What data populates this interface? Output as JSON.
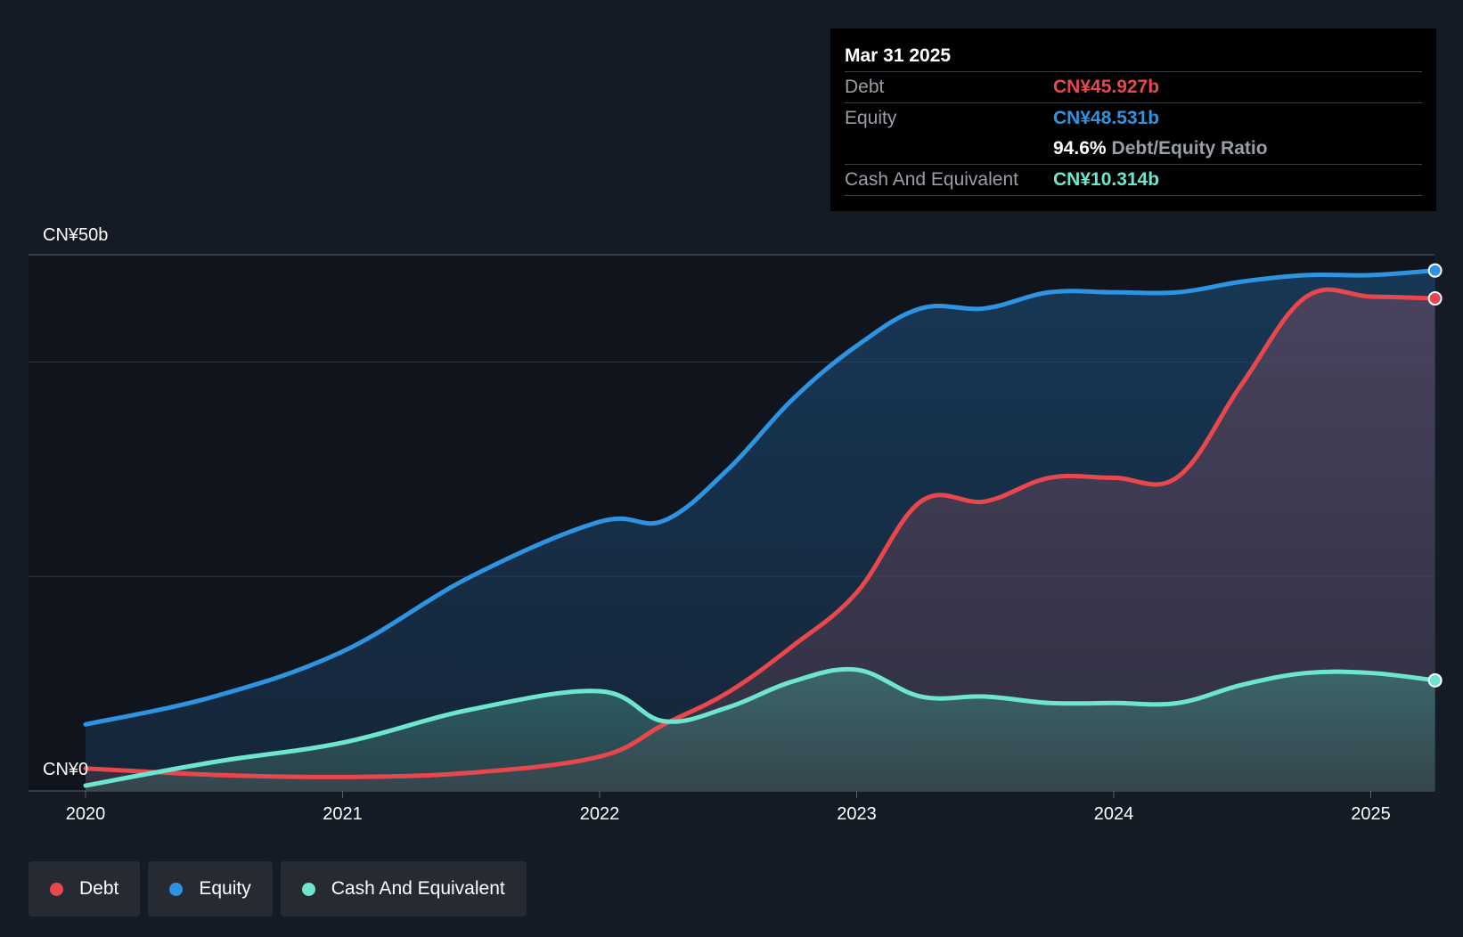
{
  "chart_data": {
    "type": "area",
    "title": "",
    "y_axis": {
      "top_label": "CN¥50b",
      "bottom_label": "CN¥0",
      "ylim": [
        0,
        50
      ]
    },
    "x_axis": {
      "ticks": [
        "2020",
        "2021",
        "2022",
        "2023",
        "2024",
        "2025"
      ],
      "xlim": [
        2020.0,
        2025.25
      ]
    },
    "series": [
      {
        "name": "Debt",
        "color": "#e8474d",
        "points": [
          [
            2020.0,
            2.1
          ],
          [
            2020.5,
            1.5
          ],
          [
            2021.0,
            1.3
          ],
          [
            2021.5,
            1.7
          ],
          [
            2022.0,
            3.2
          ],
          [
            2022.25,
            6.2
          ],
          [
            2022.5,
            9.2
          ],
          [
            2022.75,
            13.5
          ],
          [
            2023.0,
            18.5
          ],
          [
            2023.25,
            27.0
          ],
          [
            2023.5,
            27.0
          ],
          [
            2023.75,
            29.2
          ],
          [
            2024.0,
            29.2
          ],
          [
            2024.25,
            29.3
          ],
          [
            2024.5,
            38.0
          ],
          [
            2024.75,
            46.1
          ],
          [
            2025.0,
            46.1
          ],
          [
            2025.25,
            45.927
          ]
        ]
      },
      {
        "name": "Equity",
        "color": "#2e93e0",
        "points": [
          [
            2020.0,
            6.2
          ],
          [
            2020.5,
            8.8
          ],
          [
            2021.0,
            13.0
          ],
          [
            2021.5,
            20.0
          ],
          [
            2022.0,
            25.1
          ],
          [
            2022.25,
            25.2
          ],
          [
            2022.5,
            30.0
          ],
          [
            2022.75,
            36.5
          ],
          [
            2023.0,
            41.5
          ],
          [
            2023.25,
            45.0
          ],
          [
            2023.5,
            45.0
          ],
          [
            2023.75,
            46.5
          ],
          [
            2024.0,
            46.5
          ],
          [
            2024.25,
            46.5
          ],
          [
            2024.5,
            47.5
          ],
          [
            2024.75,
            48.1
          ],
          [
            2025.0,
            48.1
          ],
          [
            2025.25,
            48.531
          ]
        ]
      },
      {
        "name": "Cash And Equivalent",
        "color": "#6ee6cf",
        "points": [
          [
            2020.0,
            0.5
          ],
          [
            2020.5,
            2.7
          ],
          [
            2021.0,
            4.5
          ],
          [
            2021.5,
            7.6
          ],
          [
            2022.0,
            9.3
          ],
          [
            2022.25,
            6.5
          ],
          [
            2022.5,
            7.8
          ],
          [
            2022.75,
            10.2
          ],
          [
            2023.0,
            11.3
          ],
          [
            2023.25,
            8.8
          ],
          [
            2023.5,
            8.8
          ],
          [
            2023.75,
            8.2
          ],
          [
            2024.0,
            8.2
          ],
          [
            2024.25,
            8.2
          ],
          [
            2024.5,
            9.9
          ],
          [
            2024.75,
            11.0
          ],
          [
            2025.0,
            11.0
          ],
          [
            2025.25,
            10.314
          ]
        ]
      }
    ]
  },
  "tooltip": {
    "date": "Mar 31 2025",
    "debt_label": "Debt",
    "debt_value": "CN¥45.927b",
    "equity_label": "Equity",
    "equity_value": "CN¥48.531b",
    "ratio_value": "94.6%",
    "ratio_label": "Debt/Equity Ratio",
    "cash_label": "Cash And Equivalent",
    "cash_value": "CN¥10.314b"
  },
  "legend": {
    "items": [
      {
        "label": "Debt",
        "color": "#e8474d"
      },
      {
        "label": "Equity",
        "color": "#2e93e0"
      },
      {
        "label": "Cash And Equivalent",
        "color": "#6ee6cf"
      }
    ]
  },
  "colors": {
    "background": "#151b24",
    "plot_background": "#10151d",
    "grid": "#3a4049"
  }
}
